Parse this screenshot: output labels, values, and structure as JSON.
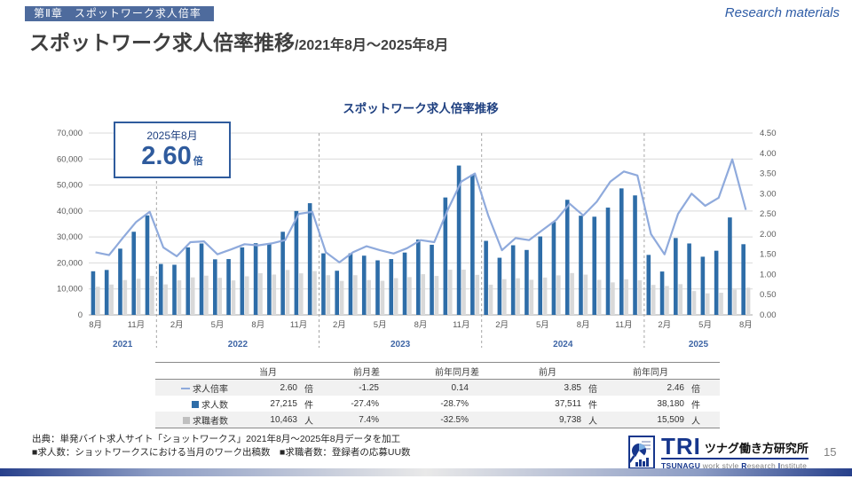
{
  "header": {
    "chapter": "第Ⅱ章　スポットワーク求人倍率",
    "research_label": "Research materials",
    "title_main": "スポットワーク求人倍率推移",
    "title_range": "/2021年8月～2025年8月"
  },
  "chart_data": {
    "type": "combo-bar-line",
    "title": "スポットワーク求人倍率推移",
    "x_tick_labels": [
      "8月",
      "11月",
      "2月",
      "5月",
      "8月",
      "11月",
      "2月",
      "5月",
      "8月",
      "11月",
      "2月",
      "5月",
      "8月",
      "11月",
      "2月",
      "5月",
      "8月"
    ],
    "year_groups": [
      {
        "label": "2021",
        "count": 5
      },
      {
        "label": "2022",
        "count": 12
      },
      {
        "label": "2023",
        "count": 12
      },
      {
        "label": "2024",
        "count": 12
      },
      {
        "label": "2025",
        "count": 8
      }
    ],
    "left_axis": {
      "min": 0,
      "max": 70000,
      "step": 10000
    },
    "right_axis": {
      "min": 0,
      "max": 4.5,
      "step": 0.5
    },
    "series": [
      {
        "name": "求人数",
        "type": "bar",
        "unit": "件",
        "color": "#2E6DA8",
        "values": [
          16800,
          17300,
          25500,
          32000,
          38300,
          19600,
          19300,
          26000,
          27500,
          21400,
          21500,
          26000,
          27600,
          27500,
          32000,
          40000,
          43000,
          23700,
          17000,
          23700,
          22800,
          21000,
          21500,
          24000,
          29000,
          27000,
          45200,
          57500,
          54000,
          28500,
          22000,
          26800,
          25000,
          30200,
          35800,
          44300,
          38180,
          37800,
          41300,
          48700,
          46000,
          23100,
          16700,
          29600,
          27500,
          22400,
          24700,
          37511,
          27215
        ]
      },
      {
        "name": "求職者数",
        "type": "bar",
        "unit": "人",
        "color": "#D9D9D9",
        "values": [
          10839,
          11689,
          13421,
          13913,
          15020,
          11737,
          13310,
          14444,
          15110,
          14267,
          13272,
          14857,
          16047,
          15537,
          17297,
          16000,
          16863,
          15290,
          13077,
          15290,
          13412,
          13125,
          14145,
          14545,
          15676,
          15000,
          17385,
          17424,
          15429,
          11633,
          13750,
          14105,
          13514,
          14381,
          15234,
          16109,
          15509,
          13500,
          12515,
          13718,
          13333,
          11550,
          11133,
          11840,
          9167,
          8296,
          8517,
          9738,
          10463
        ]
      },
      {
        "name": "求人倍率",
        "type": "line",
        "unit": "倍",
        "axis": "right",
        "color": "#8FAADC",
        "values": [
          1.55,
          1.48,
          1.9,
          2.3,
          2.55,
          1.67,
          1.45,
          1.8,
          1.82,
          1.5,
          1.62,
          1.75,
          1.72,
          1.77,
          1.85,
          2.5,
          2.55,
          1.55,
          1.3,
          1.55,
          1.7,
          1.6,
          1.52,
          1.65,
          1.85,
          1.8,
          2.6,
          3.3,
          3.5,
          2.45,
          1.6,
          1.9,
          1.85,
          2.1,
          2.35,
          2.75,
          2.46,
          2.8,
          3.3,
          3.55,
          3.45,
          2.0,
          1.5,
          2.5,
          3.0,
          2.7,
          2.9,
          3.85,
          2.6
        ]
      }
    ],
    "callout": {
      "label": "2025年8月",
      "value": "2.60",
      "unit": "倍"
    }
  },
  "table": {
    "headers": [
      "当月",
      "前月差",
      "前年同月差",
      "前月",
      "前年同月"
    ],
    "rows": [
      {
        "label": "求人倍率",
        "current": "2.60",
        "current_unit": "倍",
        "mom_diff": "-1.25",
        "yoy_diff": "0.14",
        "prev_month": "3.85",
        "prev_month_unit": "倍",
        "prev_year": "2.46",
        "prev_year_unit": "倍"
      },
      {
        "label": "求人数",
        "current": "27,215",
        "current_unit": "件",
        "mom_diff": "-27.4%",
        "yoy_diff": "-28.7%",
        "prev_month": "37,511",
        "prev_month_unit": "件",
        "prev_year": "38,180",
        "prev_year_unit": "件"
      },
      {
        "label": "求職者数",
        "current": "10,463",
        "current_unit": "人",
        "mom_diff": "7.4%",
        "yoy_diff": "-32.5%",
        "prev_month": "9,738",
        "prev_month_unit": "人",
        "prev_year": "15,509",
        "prev_year_unit": "人"
      }
    ]
  },
  "footer": {
    "source_line1": "出典：単発バイト求人サイト「ショットワークス」2021年8月～2025年8月データを加工",
    "source_line2": "■求人数：ショットワークスにおける当月のワーク出稿数　■求職者数：登録者の応募UU数",
    "page_number": "15"
  },
  "logo": {
    "tri": "TRI",
    "name_jp": "ツナグ働き方研究所",
    "en": [
      "TSUNAGU",
      " work style ",
      "R",
      "esearch ",
      "I",
      "nstitute"
    ]
  },
  "colors": {
    "bar_jobs": "#2E6DA8",
    "bar_seekers": "#D9D9D9",
    "line_ratio": "#8FAADC",
    "accent_blue": "#1F4080"
  }
}
